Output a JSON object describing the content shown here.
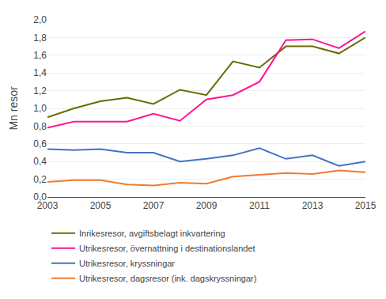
{
  "chart_data": {
    "type": "line",
    "ylabel": "Mn resor",
    "x": [
      2003,
      2004,
      2005,
      2006,
      2007,
      2008,
      2009,
      2010,
      2011,
      2012,
      2013,
      2014,
      2015
    ],
    "series": [
      {
        "name": "Inrikesresor, avgiftsbelagt inkvartering",
        "color": "#6b6b00",
        "values": [
          0.9,
          1.0,
          1.08,
          1.12,
          1.05,
          1.21,
          1.15,
          1.53,
          1.46,
          1.7,
          1.7,
          1.62,
          1.8
        ]
      },
      {
        "name": "Utrikesresor, övernattning i destinationslandet",
        "color": "#ff1493",
        "values": [
          0.78,
          0.85,
          0.85,
          0.85,
          0.94,
          0.86,
          1.1,
          1.15,
          1.3,
          1.77,
          1.78,
          1.68,
          1.87
        ]
      },
      {
        "name": "Utrikesresor, kryssningar",
        "color": "#4472c4",
        "values": [
          0.54,
          0.53,
          0.54,
          0.5,
          0.5,
          0.4,
          0.43,
          0.47,
          0.55,
          0.43,
          0.47,
          0.35,
          0.4
        ]
      },
      {
        "name": "Utrikesresor, dagsresor (ink. dagskryssningar)",
        "color": "#ed7d31",
        "values": [
          0.17,
          0.19,
          0.19,
          0.14,
          0.13,
          0.16,
          0.15,
          0.23,
          0.25,
          0.27,
          0.26,
          0.3,
          0.28
        ]
      }
    ],
    "xlim": [
      2003,
      2015
    ],
    "xticks": [
      2003,
      2005,
      2007,
      2009,
      2011,
      2013,
      2015
    ],
    "ylim": [
      0.0,
      2.0
    ],
    "yticks": [
      {
        "value": 0.0,
        "label": "0,0"
      },
      {
        "value": 0.2,
        "label": "0,2"
      },
      {
        "value": 0.4,
        "label": "0,4"
      },
      {
        "value": 0.6,
        "label": "0,6"
      },
      {
        "value": 0.8,
        "label": "0,8"
      },
      {
        "value": 1.0,
        "label": "1,0"
      },
      {
        "value": 1.2,
        "label": "1,2"
      },
      {
        "value": 1.4,
        "label": "1,4"
      },
      {
        "value": 1.6,
        "label": "1,6"
      },
      {
        "value": 1.8,
        "label": "1,8"
      },
      {
        "value": 2.0,
        "label": "2,0"
      }
    ],
    "grid": "y",
    "legend": "bottom left"
  }
}
